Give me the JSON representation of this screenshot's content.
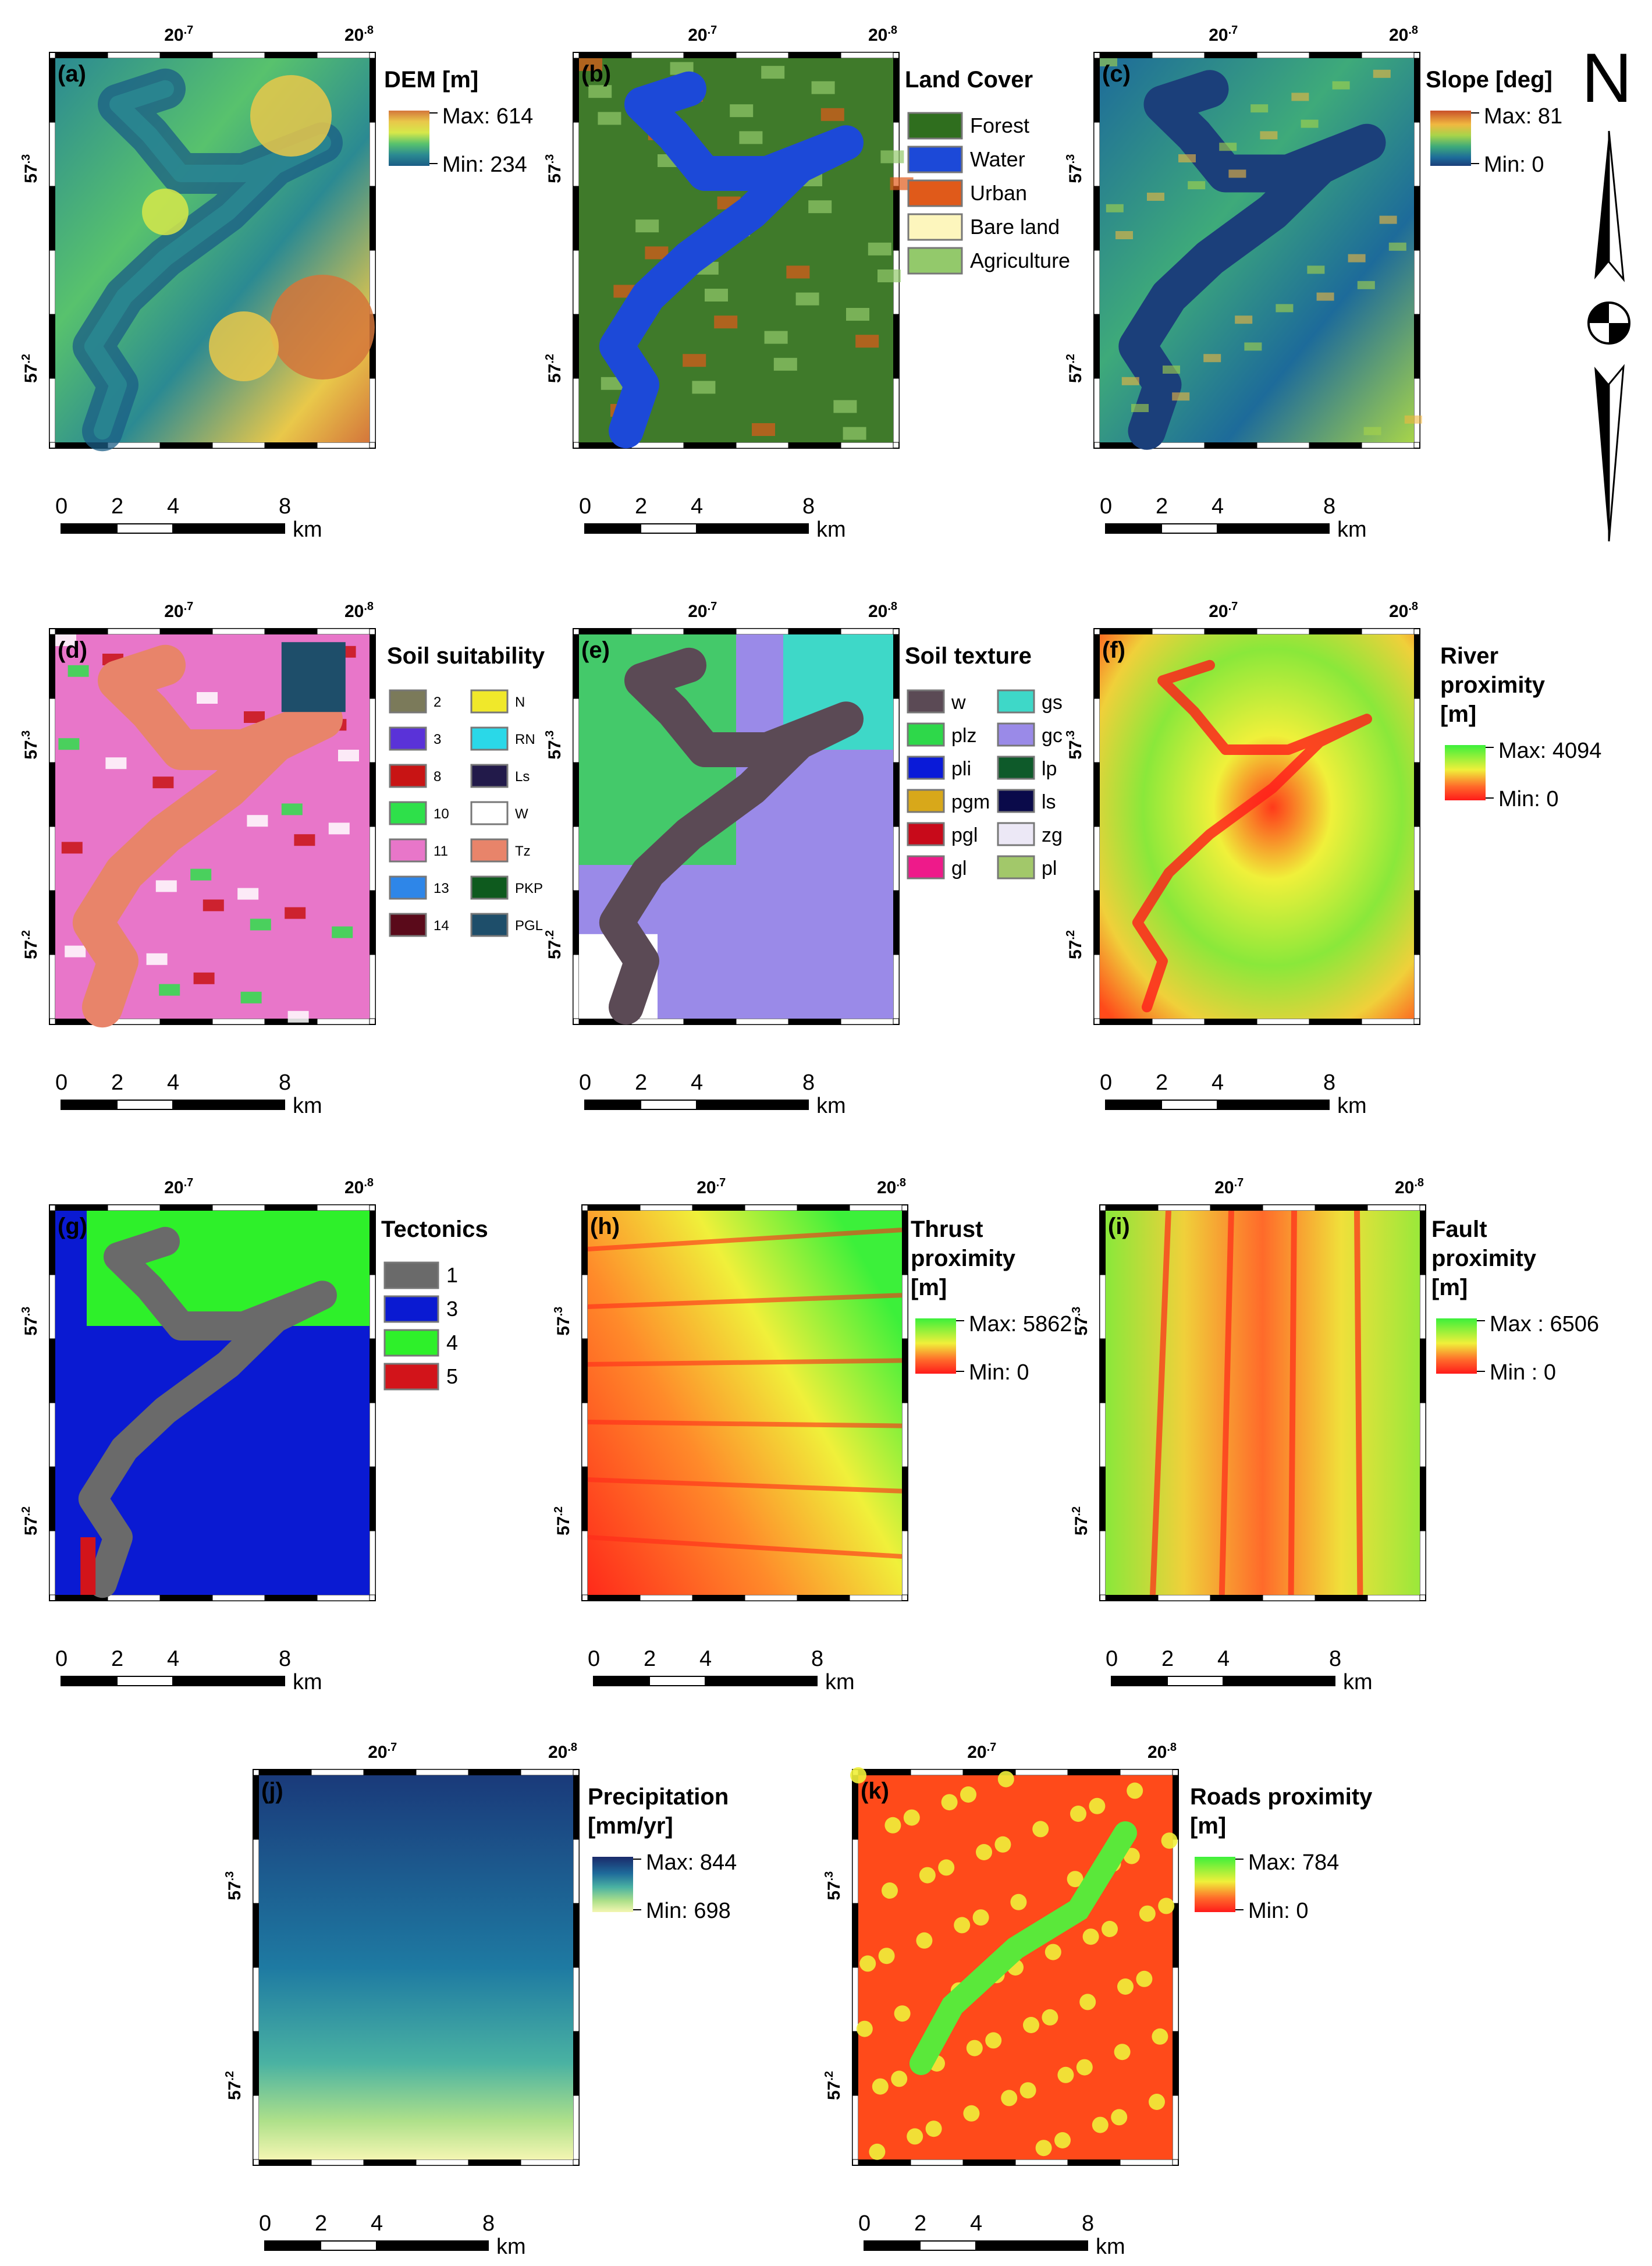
{
  "axis": {
    "lon_ticks": [
      {
        "base": "20",
        "exp": ".7"
      },
      {
        "base": "20",
        "exp": ".8"
      }
    ],
    "lat_ticks": [
      {
        "base": "57",
        "exp": ".3"
      },
      {
        "base": "57",
        "exp": ".2"
      }
    ]
  },
  "scalebar": {
    "ticks": [
      "0",
      "2",
      "4",
      "8"
    ],
    "unit": "km"
  },
  "north_arrow": {
    "letter": "N"
  },
  "panels": [
    {
      "id": "a",
      "label": "(a)",
      "title_lines": [
        "DEM [m]"
      ],
      "legend_type": "ramp",
      "max_label": "Max: 614",
      "min_label": "Min: 234",
      "ramp": [
        "#d4763b",
        "#e9c84a",
        "#d6e84a",
        "#58c26d",
        "#2b8a92",
        "#1b5d86"
      ]
    },
    {
      "id": "b",
      "label": "(b)",
      "title_lines": [
        "Land Cover"
      ],
      "legend_type": "classes",
      "classes": [
        {
          "color": "#2f6e1e",
          "name": "Forest"
        },
        {
          "color": "#1c49d8",
          "name": "Water"
        },
        {
          "color": "#e05a1a",
          "name": "Urban"
        },
        {
          "color": "#fdf6bd",
          "name": "Bare land"
        },
        {
          "color": "#93c96b",
          "name": "Agriculture"
        }
      ]
    },
    {
      "id": "c",
      "label": "(c)",
      "title_lines": [
        "Slope [deg]"
      ],
      "legend_type": "ramp",
      "max_label": "Max: 81",
      "min_label": "Min: 0",
      "ramp": [
        "#c9502a",
        "#f0b840",
        "#a7d44a",
        "#3eaa7a",
        "#1d6b9a",
        "#1b3f7a"
      ]
    },
    {
      "id": "d",
      "label": "(d)",
      "title_lines": [
        "Soil suitability"
      ],
      "legend_type": "classes2",
      "classes": [
        {
          "color": "#7b7a5a",
          "name": "2"
        },
        {
          "color": "#f0e82a",
          "name": "N"
        },
        {
          "color": "#5a32d8",
          "name": "3"
        },
        {
          "color": "#2ad8e8",
          "name": "RN"
        },
        {
          "color": "#c81414",
          "name": "8"
        },
        {
          "color": "#221a4a",
          "name": "Ls"
        },
        {
          "color": "#2ee04a",
          "name": "10"
        },
        {
          "color": "#ffffff",
          "name": "W"
        },
        {
          "color": "#e876c9",
          "name": "11"
        },
        {
          "color": "#e8846a",
          "name": "Tz"
        },
        {
          "color": "#2e86e8",
          "name": "13"
        },
        {
          "color": "#0e5a1e",
          "name": "PKP"
        },
        {
          "color": "#5a0a1a",
          "name": "14"
        },
        {
          "color": "#1e4e6a",
          "name": "PGL"
        }
      ]
    },
    {
      "id": "e",
      "label": "(e)",
      "title_lines": [
        "Soil texture"
      ],
      "legend_type": "classes2",
      "classes": [
        {
          "color": "#5b4a55",
          "name": "w"
        },
        {
          "color": "#3ed8c8",
          "name": "gs"
        },
        {
          "color": "#2ed84a",
          "name": "plz"
        },
        {
          "color": "#9a8ae8",
          "name": "gc"
        },
        {
          "color": "#0a1ad8",
          "name": "pli"
        },
        {
          "color": "#0e5a2a",
          "name": "lp"
        },
        {
          "color": "#d8a81a",
          "name": "pgm"
        },
        {
          "color": "#0a0a4a",
          "name": "ls"
        },
        {
          "color": "#c80a1a",
          "name": "pgl"
        },
        {
          "color": "#ece8f6",
          "name": "zg"
        },
        {
          "color": "#ee1a8a",
          "name": "gl"
        },
        {
          "color": "#a2c86a",
          "name": "pl"
        }
      ]
    },
    {
      "id": "f",
      "label": "(f)",
      "title_lines": [
        "River",
        "proximity",
        "[m]"
      ],
      "legend_type": "ramp",
      "max_label": "Max: 4094",
      "min_label": "Min: 0",
      "ramp": [
        "#3cf03a",
        "#f0f03a",
        "#ff6a2a",
        "#ff1a1a"
      ]
    },
    {
      "id": "g",
      "label": "(g)",
      "title_lines": [
        "Tectonics"
      ],
      "legend_type": "classes",
      "classes": [
        {
          "color": "#6a6a6a",
          "name": "1"
        },
        {
          "color": "#0a1ad2",
          "name": "3"
        },
        {
          "color": "#2ef02a",
          "name": "4"
        },
        {
          "color": "#d2141a",
          "name": "5"
        }
      ]
    },
    {
      "id": "h",
      "label": "(h)",
      "title_lines": [
        "Thrust",
        "proximity",
        "[m]"
      ],
      "legend_type": "ramp",
      "max_label": "Max: 5862",
      "min_label": "Min: 0",
      "ramp": [
        "#3cf03a",
        "#f0f03a",
        "#ff6a2a",
        "#ff1a1a"
      ]
    },
    {
      "id": "i",
      "label": "(i)",
      "title_lines": [
        "Fault",
        "proximity",
        "[m]"
      ],
      "legend_type": "ramp",
      "max_label": "Max : 6506",
      "min_label": "Min : 0",
      "ramp": [
        "#3cf03a",
        "#f0f03a",
        "#ff6a2a",
        "#ff1a1a"
      ]
    },
    {
      "id": "j",
      "label": "(j)",
      "title_lines": [
        "Precipitation",
        "[mm/yr]"
      ],
      "legend_type": "ramp",
      "max_label": "Max: 844",
      "min_label": "Min: 698",
      "ramp": [
        "#1a2a6a",
        "#1e6a9a",
        "#4ab2a2",
        "#aee08a",
        "#f4f6b2"
      ]
    },
    {
      "id": "k",
      "label": "(k)",
      "title_lines": [
        "Roads proximity",
        "[m]"
      ],
      "legend_type": "ramp",
      "max_label": "Max: 784",
      "min_label": "Min: 0",
      "ramp": [
        "#3cf03a",
        "#f0f03a",
        "#ff6a2a",
        "#ff1a1a"
      ]
    }
  ]
}
